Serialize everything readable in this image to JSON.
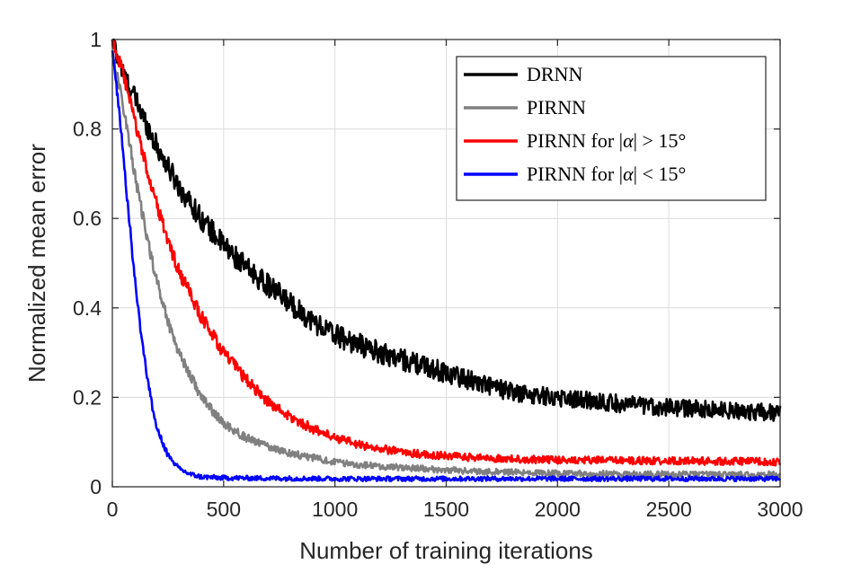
{
  "chart_data": {
    "type": "line",
    "title": "",
    "xlabel": "Number of training iterations",
    "ylabel": "Normalized mean error",
    "xlim": [
      0,
      3000
    ],
    "ylim": [
      0,
      1
    ],
    "xticks": [
      0,
      500,
      1000,
      1500,
      2000,
      2500,
      3000
    ],
    "xtick_labels": [
      "0",
      "500",
      "1000",
      "1500",
      "2000",
      "2500",
      "3000"
    ],
    "yticks": [
      0,
      0.2,
      0.4,
      0.6,
      0.8,
      1
    ],
    "ytick_labels": [
      "0",
      "0.2",
      "0.4",
      "0.6",
      "0.8",
      "1"
    ],
    "grid": true,
    "legend_position": "top-right",
    "series": [
      {
        "name": "DRNN",
        "legend_parts": [
          {
            "t": "DRNN",
            "i": false
          }
        ],
        "color": "#000000",
        "x": [
          0,
          50,
          100,
          200,
          300,
          400,
          500,
          600,
          700,
          800,
          900,
          1000,
          1200,
          1400,
          1600,
          1800,
          2000,
          2200,
          2400,
          2600,
          2800,
          3000
        ],
        "y": [
          1.0,
          0.92,
          0.87,
          0.76,
          0.67,
          0.6,
          0.54,
          0.49,
          0.45,
          0.41,
          0.37,
          0.34,
          0.3,
          0.27,
          0.24,
          0.21,
          0.2,
          0.19,
          0.18,
          0.175,
          0.17,
          0.165
        ],
        "noise": 0.018
      },
      {
        "name": "PIRNN",
        "legend_parts": [
          {
            "t": "PIRNN",
            "i": false
          }
        ],
        "color": "#808080",
        "x": [
          0,
          50,
          100,
          150,
          200,
          250,
          300,
          400,
          500,
          600,
          700,
          800,
          900,
          1000,
          1100,
          1200,
          1300,
          1400,
          1600,
          2000,
          2500,
          3000
        ],
        "y": [
          0.97,
          0.85,
          0.7,
          0.57,
          0.46,
          0.37,
          0.3,
          0.2,
          0.14,
          0.11,
          0.09,
          0.075,
          0.065,
          0.055,
          0.05,
          0.045,
          0.043,
          0.04,
          0.035,
          0.03,
          0.028,
          0.027
        ],
        "noise": 0.01
      },
      {
        "name": "PIRNN for |α| > 15°",
        "legend_parts": [
          {
            "t": "PIRNN for |",
            "i": false
          },
          {
            "t": "α",
            "i": true
          },
          {
            "t": "| > 15°",
            "i": false
          }
        ],
        "color": "#ff0000",
        "x": [
          0,
          50,
          100,
          150,
          200,
          250,
          300,
          400,
          500,
          600,
          700,
          800,
          900,
          1000,
          1100,
          1200,
          1300,
          1400,
          1600,
          1800,
          2000,
          2500,
          3000
        ],
        "y": [
          1.0,
          0.92,
          0.82,
          0.72,
          0.63,
          0.55,
          0.48,
          0.38,
          0.3,
          0.24,
          0.19,
          0.155,
          0.13,
          0.11,
          0.095,
          0.085,
          0.078,
          0.072,
          0.066,
          0.062,
          0.06,
          0.058,
          0.056
        ],
        "noise": 0.011
      },
      {
        "name": "PIRNN for |α| < 15°",
        "legend_parts": [
          {
            "t": "PIRNN for |",
            "i": false
          },
          {
            "t": "α",
            "i": true
          },
          {
            "t": "| < 15°",
            "i": false
          }
        ],
        "color": "#0000ff",
        "x": [
          0,
          25,
          50,
          75,
          100,
          125,
          150,
          175,
          200,
          250,
          300,
          350,
          400,
          500,
          700,
          1000,
          1500,
          2000,
          2500,
          3000
        ],
        "y": [
          0.97,
          0.87,
          0.74,
          0.6,
          0.47,
          0.36,
          0.27,
          0.19,
          0.13,
          0.07,
          0.04,
          0.028,
          0.022,
          0.02,
          0.019,
          0.018,
          0.018,
          0.018,
          0.018,
          0.018
        ],
        "noise": 0.008
      }
    ]
  }
}
